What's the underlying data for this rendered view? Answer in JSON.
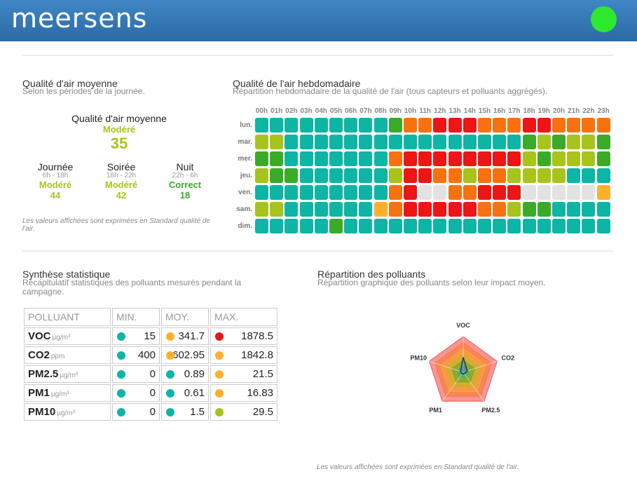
{
  "header": {
    "logo": "meersens",
    "status_color": "#2ee82e"
  },
  "colors": {
    "A": "#0db5a5",
    "G": "#3aab28",
    "L": "#a8c41c",
    "Y": "#ffb02b",
    "O": "#f7720e",
    "R": "#ed1515",
    "X": "#e2e2e2"
  },
  "avg": {
    "title": "Qualité d'air moyenne",
    "subtitle": "Selon les périodes de la journée.",
    "overall": {
      "label": "Qualité d'air moyenne",
      "quality": "Modéré",
      "value": "35"
    },
    "periods": [
      {
        "name": "Journée",
        "range": "6h - 18h",
        "quality": "Modéré",
        "value": "44",
        "color": "#a8c41c"
      },
      {
        "name": "Soirée",
        "range": "18h - 22h",
        "quality": "Modéré",
        "value": "42",
        "color": "#a8c41c"
      },
      {
        "name": "Nuit",
        "range": "22h - 6h",
        "quality": "Correct",
        "value": "18",
        "color": "#3aab28"
      }
    ],
    "note": "Les valeurs affichées sont exprimées en Standard qualité de l'air."
  },
  "weekly": {
    "title": "Qualité de l'air hebdomadaire",
    "subtitle": "Répartition hebdomadaire de la qualité de l'air (tous capteurs et polluants aggrégés).",
    "hours": [
      "00h",
      "01h",
      "02h",
      "03h",
      "04h",
      "05h",
      "06h",
      "07h",
      "08h",
      "09h",
      "10h",
      "11h",
      "12h",
      "13h",
      "14h",
      "15h",
      "16h",
      "17h",
      "18h",
      "19h",
      "20h",
      "21h",
      "22h",
      "23h"
    ],
    "days": [
      "lun.",
      "mar.",
      "mer.",
      "jeu.",
      "ven.",
      "sam.",
      "dim."
    ],
    "grid": [
      "AAAAAAAAAGOORRROOORROOOO",
      "LLAAAAAAAAAAAAAAAAGLGLLG",
      "GGAAAAAAAORRRRRRRRLGLLLG",
      "LGGAAAAAALRROOLOOLLLLAAA",
      "AAAAAAAAAORXXOORRRXXXXXY",
      "LLAAAAAAYORRRRROOLGGAAAA",
      "AAAAAGAAAAAAAAAAAAAAAAAA"
    ]
  },
  "stats": {
    "title": "Synthèse statistique",
    "subtitle": "Récapitulatif statistiques des polluants mesurés pendant la campagne.",
    "headers": [
      "POLLUANT",
      "MIN.",
      "MOY.",
      "MAX."
    ],
    "rows": [
      {
        "name": "VOC",
        "unit": "µg/m³",
        "min": "15",
        "min_color": "#0db5a5",
        "avg": "341.7",
        "avg_color": "#ffb02b",
        "max": "1878.5",
        "max_color": "#ed1515"
      },
      {
        "name": "CO2",
        "unit": "ppm",
        "min": "400",
        "min_color": "#0db5a5",
        "avg": "602.95",
        "avg_color": "#ffb02b",
        "max": "1842.8",
        "max_color": "#ffb02b"
      },
      {
        "name": "PM2.5",
        "unit": "µg/m³",
        "min": "0",
        "min_color": "#0db5a5",
        "avg": "0.89",
        "avg_color": "#0db5a5",
        "max": "21.5",
        "max_color": "#ffb02b"
      },
      {
        "name": "PM1",
        "unit": "µg/m³",
        "min": "0",
        "min_color": "#0db5a5",
        "avg": "0.61",
        "avg_color": "#0db5a5",
        "max": "16.83",
        "max_color": "#ffb02b"
      },
      {
        "name": "PM10",
        "unit": "µg/m³",
        "min": "0",
        "min_color": "#0db5a5",
        "avg": "1.5",
        "avg_color": "#0db5a5",
        "max": "29.5",
        "max_color": "#a8c41c"
      }
    ]
  },
  "repartition": {
    "title": "Répartition des polluants",
    "subtitle": "Répartition graphique des polluants selon leur impact moyen.",
    "note": "Les valeurs affichées sont exprimées en Standard qualité de l'air."
  },
  "chart_data": {
    "type": "radar",
    "axes": [
      "VOC",
      "CO2",
      "PM2.5",
      "PM1",
      "PM10"
    ],
    "values": [
      0.42,
      0.12,
      0.05,
      0.05,
      0.08
    ],
    "bands": [
      "#0db5a5",
      "#3aab28",
      "#a8c41c",
      "#ffb02b",
      "#f7720e",
      "#ed1515"
    ]
  }
}
